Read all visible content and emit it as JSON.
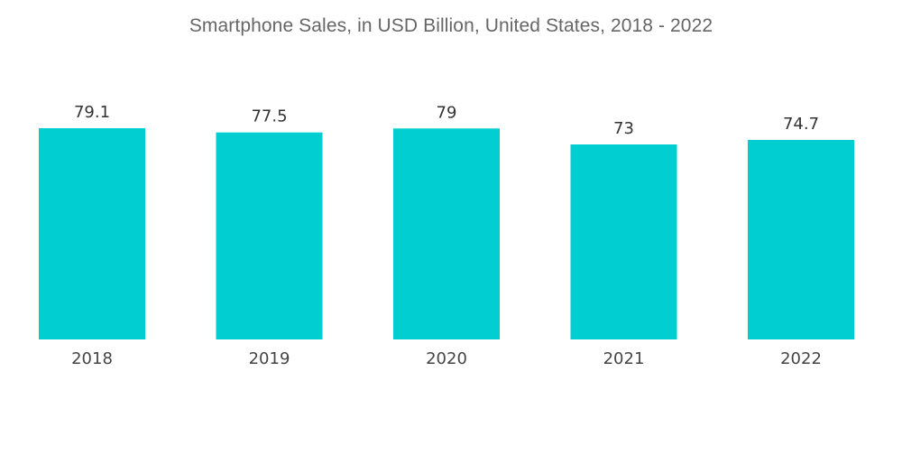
{
  "chart_data": {
    "type": "bar",
    "title": "Smartphone Sales, in USD Billion, United States, 2018 - 2022",
    "categories": [
      "2018",
      "2019",
      "2020",
      "2021",
      "2022"
    ],
    "values": [
      79.1,
      77.5,
      79,
      73,
      74.7
    ],
    "value_labels": [
      "79.1",
      "77.5",
      "79",
      "73",
      "74.7"
    ],
    "xlabel": "",
    "ylabel": "",
    "ylim": [
      0,
      79.1
    ],
    "grid": false,
    "bar_color": "#00CED1"
  }
}
